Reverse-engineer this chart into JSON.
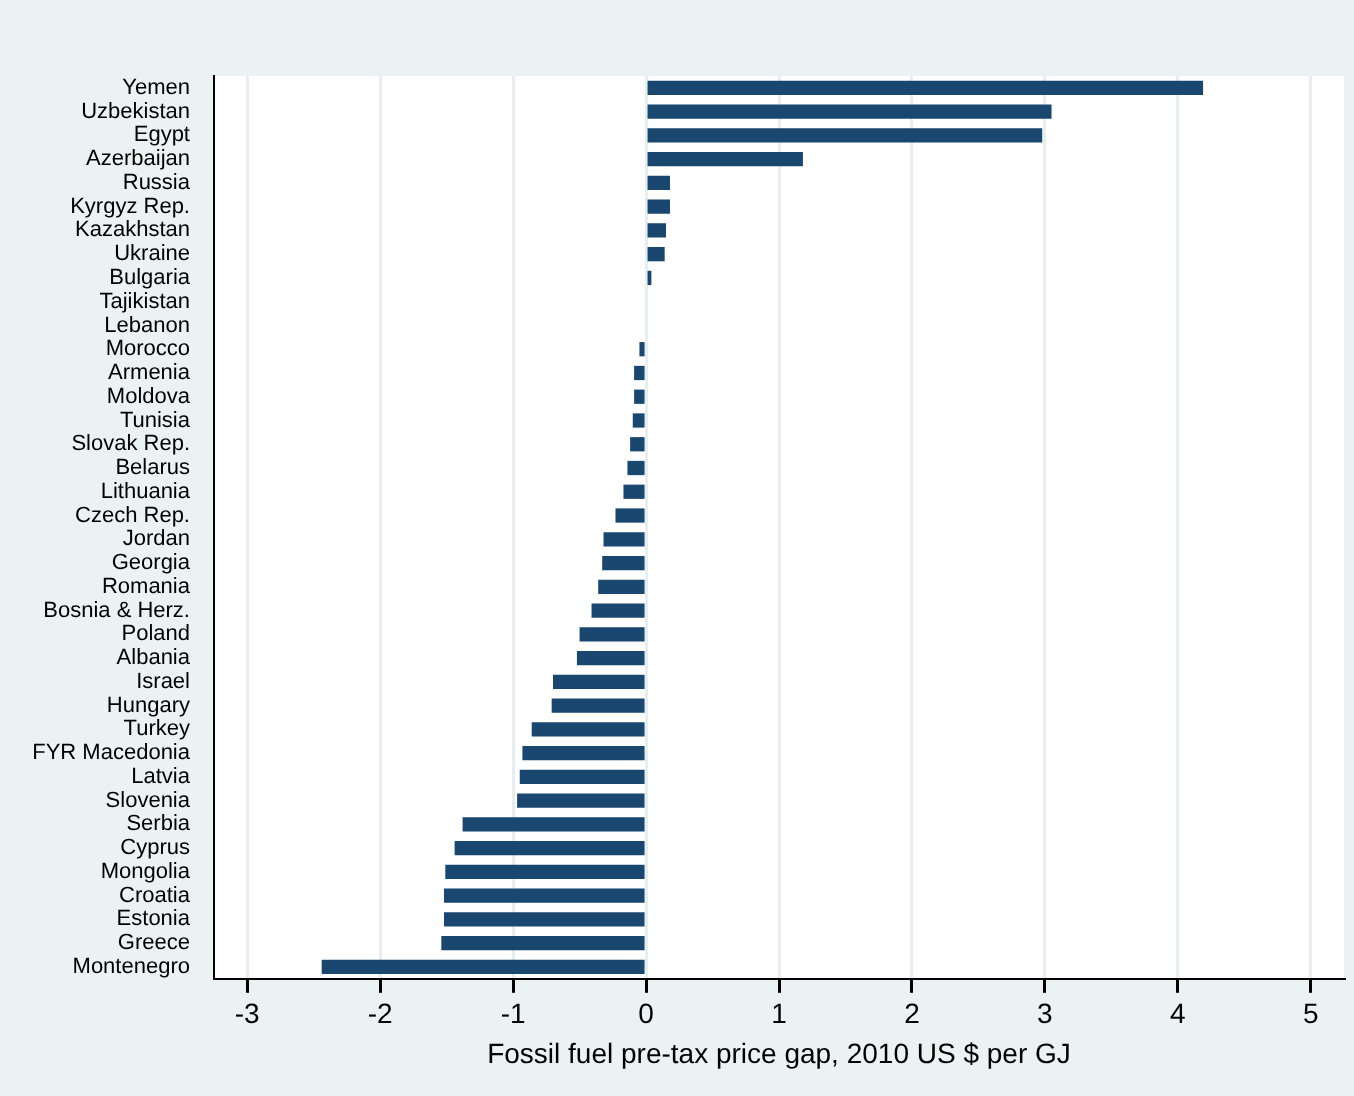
{
  "chart_data": {
    "type": "bar",
    "orientation": "horizontal",
    "xlabel": "Fossil fuel pre-tax price gap, 2010 US $ per GJ",
    "categories": [
      "Yemen",
      "Uzbekistan",
      "Egypt",
      "Azerbaijan",
      "Russia",
      "Kyrgyz Rep.",
      "Kazakhstan",
      "Ukraine",
      "Bulgaria",
      "Tajikistan",
      "Lebanon",
      "Morocco",
      "Armenia",
      "Moldova",
      "Tunisia",
      "Slovak Rep.",
      "Belarus",
      "Lithuania",
      "Czech Rep.",
      "Jordan",
      "Georgia",
      "Romania",
      "Bosnia & Herz.",
      "Poland",
      "Albania",
      "Israel",
      "Hungary",
      "Turkey",
      "FYR Macedonia",
      "Latvia",
      "Slovenia",
      "Serbia",
      "Cyprus",
      "Mongolia",
      "Croatia",
      "Estonia",
      "Greece",
      "Montenegro"
    ],
    "values": [
      4.19,
      3.05,
      2.98,
      1.18,
      0.18,
      0.18,
      0.15,
      0.14,
      0.04,
      0,
      0,
      -0.05,
      -0.09,
      -0.09,
      -0.1,
      -0.12,
      -0.14,
      -0.17,
      -0.23,
      -0.32,
      -0.33,
      -0.36,
      -0.41,
      -0.5,
      -0.52,
      -0.7,
      -0.71,
      -0.86,
      -0.93,
      -0.95,
      -0.97,
      -1.38,
      -1.44,
      -1.51,
      -1.52,
      -1.52,
      -1.54,
      -2.44
    ],
    "color": "#1a476f",
    "xlim": [
      -3.25,
      5.25
    ],
    "xticks": [
      -3,
      -2,
      -1,
      0,
      1,
      2,
      3,
      4,
      5
    ],
    "grid": "x",
    "legend": false
  }
}
